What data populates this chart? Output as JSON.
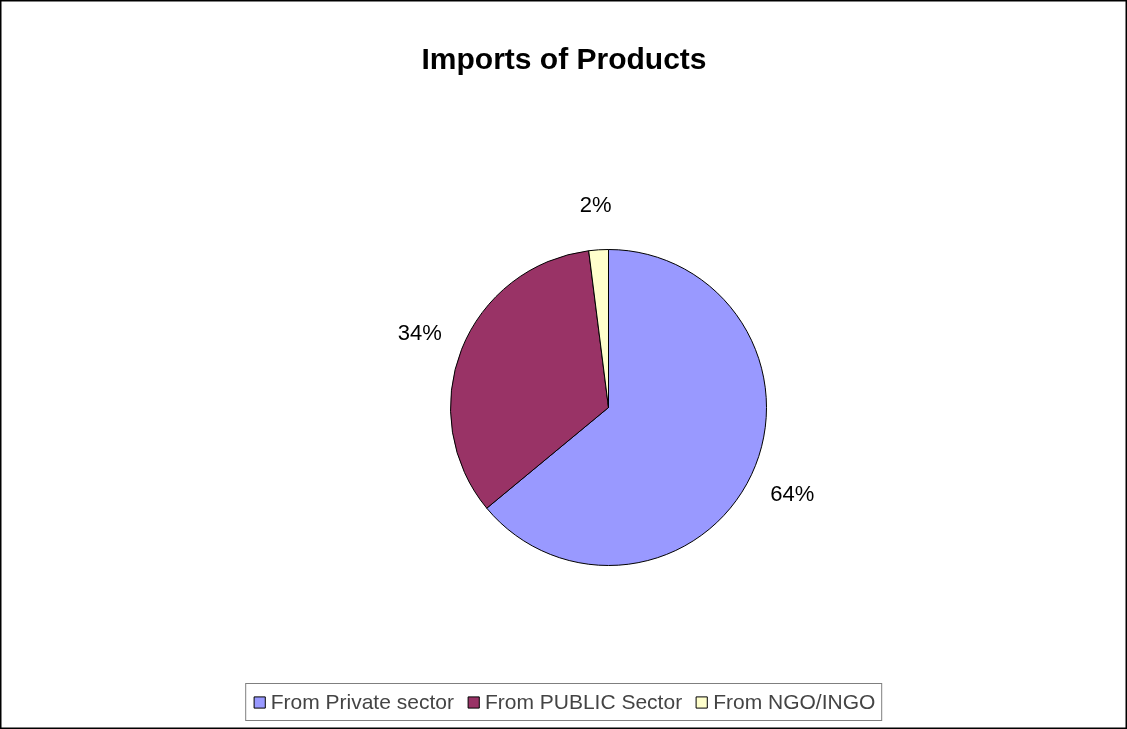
{
  "chart_data": {
    "type": "pie",
    "title": "Imports of Products",
    "categories": [
      "From Private sector",
      "From PUBLIC Sector",
      "From NGO/INGO"
    ],
    "values": [
      64,
      34,
      2
    ],
    "value_labels": [
      "64%",
      "34%",
      "2%"
    ],
    "colors": [
      "#9999ff",
      "#993366",
      "#ffffcc"
    ],
    "legend": "bottom"
  }
}
